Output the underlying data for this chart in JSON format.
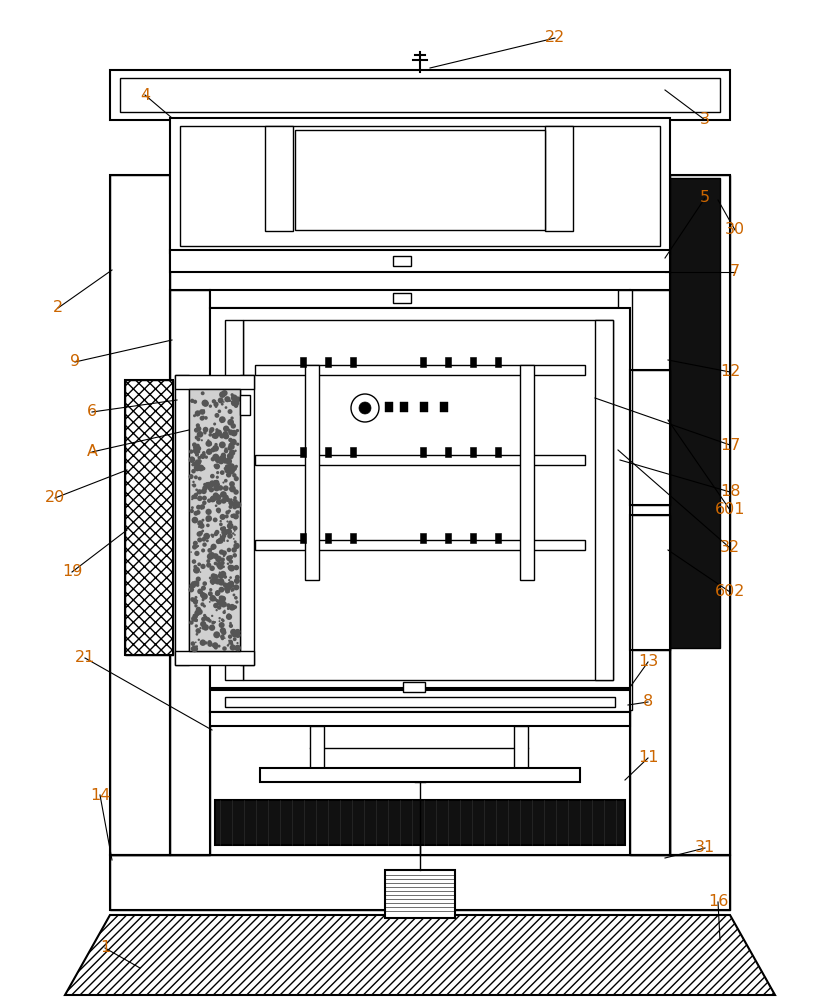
{
  "bg_color": "#ffffff",
  "line_color": "#000000",
  "label_color": "#cc6600",
  "fig_width": 8.4,
  "fig_height": 10.0
}
